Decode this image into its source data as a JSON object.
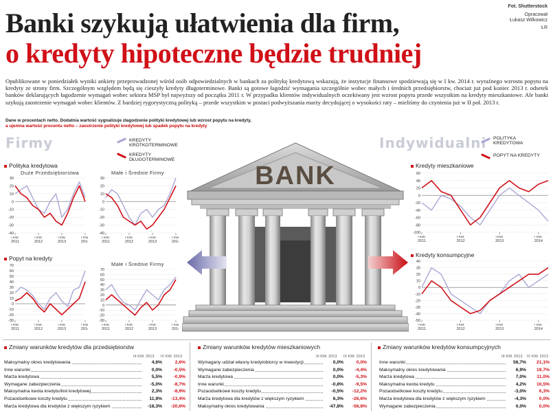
{
  "header": {
    "title_line1": "Banki szykują ułatwienia dla firm,",
    "title_line2": "o kredyty hipoteczne będzie trudniej",
    "credit_photo": "Fot. Shutterstock",
    "credit_author_label": "Opracował",
    "credit_author": "Łukasz Wilkowicz",
    "credit_mark": "ŁR"
  },
  "lead": "Opublikowane w poniedziałek wyniki ankiety przeprowadzonej wśród osób odpowiedzialnych w bankach za politykę kredytową wskazują, że instytucje finansowe spodziewają się w I kw. 2014 r. wyraźnego wzrostu popytu na kredyty ze strony firm. Szczególnym względem będą się cieszyły kredyty długoterminowe. Banki są gotowe łagodzić wymagania szczególnie wobec małych i średnich przedsiębiorstw, chociaż już pod koniec 2013 r. odsetek banków deklarujących łagodzenie wymagań wobec sektora MSP był najwyższy od początku 2011 r. W przypadku klientów indywidualnych oczekiwany jest wzrost popytu przede wszystkim na kredyty mieszkaniowe. Ale banki szykują zaostrzenie wymagań wobec klientów. Z bardziej rygorystyczną polityką – przede wszystkim w postaci podwyższania marży decydującej o wysokości raty – mieliśmy do czynienia już w II poł. 2013 r.",
  "notes": {
    "line1": "Dane w procentach netto. Dodatnia wartość sygnalizuje złagodzenie polityki kredytowej lub wzrost popytu na kredyty,",
    "line2": "a ujemna wartość procentu netto – zaostrzenie polityki kredytowej lub spadek popytu na kredyty"
  },
  "sections": {
    "firms": "Firmy",
    "individuals": "Indywidualni",
    "bank_sign": "BANK"
  },
  "legend_firms": {
    "short": "Kredyty krótkoterminowe",
    "long": "Kredyty długoterminowe"
  },
  "legend_ind": {
    "policy": "Polityka kredytowa",
    "demand": "Popyt na kredyty"
  },
  "colors": {
    "red": "#d01018",
    "lavender": "#a8a6d4",
    "section_gray": "#c9ccd6"
  },
  "chart_titles": {
    "policy": "Polityka kredytowa",
    "demand": "Popyt na kredyty",
    "large": "Duże Przedsiębiorstwa",
    "sme_top": "Małe i Średnie Firmy",
    "sme_bottom": "Małe i Średnie Firmy",
    "mortgage": "Kredyty mieszkaniowe",
    "consumer": "Kredyty konsumpcyjne"
  },
  "axis": {
    "year_labels": [
      "2011",
      "2012",
      "2013",
      "2014"
    ],
    "q_label": "I KW.",
    "yticks_small_top": [
      "30",
      "20",
      "10",
      "0",
      "-10",
      "-20",
      "-30",
      "-40"
    ],
    "yticks_small_bottom": [
      "70",
      "60",
      "50",
      "40",
      "30",
      "20",
      "10",
      "0",
      "-10",
      "-20",
      "-30"
    ],
    "yticks_mort": [
      "60",
      "40",
      "20",
      "0",
      "-20",
      "-40",
      "-60",
      "-80",
      "-100"
    ],
    "yticks_cons": [
      "40",
      "30",
      "20",
      "10",
      "0",
      "-10",
      "-20",
      "-30",
      "-40",
      "-50"
    ]
  },
  "chart_data": [
    {
      "type": "line",
      "title": "Polityka kredytowa – Duże Przedsiębiorstwa",
      "x": [
        "2011 Q1",
        "Q2",
        "Q3",
        "Q4",
        "2012 Q1",
        "Q2",
        "Q3",
        "Q4",
        "2013 Q1",
        "Q2",
        "Q3",
        "Q4",
        "2014 Q1"
      ],
      "ylim": [
        -40,
        30
      ],
      "series": [
        {
          "name": "Kredyty krótkoterminowe",
          "values": [
            10,
            15,
            20,
            5,
            -10,
            -15,
            0,
            10,
            -20,
            -10,
            10,
            25,
            5
          ]
        },
        {
          "name": "Kredyty długoterminowe",
          "values": [
            20,
            10,
            5,
            -5,
            -10,
            -20,
            -15,
            -25,
            -30,
            -15,
            5,
            20,
            0
          ]
        }
      ]
    },
    {
      "type": "line",
      "title": "Polityka kredytowa – Małe i Średnie Firmy",
      "x": [
        "2011 Q1",
        "Q2",
        "Q3",
        "Q4",
        "2012 Q1",
        "Q2",
        "Q3",
        "Q4",
        "2013 Q1",
        "Q2",
        "Q3",
        "Q4",
        "2014 Q1"
      ],
      "ylim": [
        -40,
        30
      ],
      "series": [
        {
          "name": "Kredyty krótkoterminowe",
          "values": [
            5,
            15,
            10,
            -5,
            -20,
            -30,
            -15,
            -10,
            -20,
            -10,
            -5,
            10,
            30
          ]
        },
        {
          "name": "Kredyty długoterminowe",
          "values": [
            10,
            5,
            -5,
            -20,
            -25,
            -30,
            -25,
            -35,
            -30,
            -20,
            -10,
            5,
            20
          ]
        }
      ]
    },
    {
      "type": "line",
      "title": "Popyt na kredyty – Duże Przedsiębiorstwa",
      "x": [
        "2011 Q1",
        "Q2",
        "Q3",
        "Q4",
        "2012 Q1",
        "Q2",
        "Q3",
        "Q4",
        "2013 Q1",
        "Q2",
        "Q3",
        "Q4",
        "2014 Q1"
      ],
      "ylim": [
        -30,
        70
      ],
      "series": [
        {
          "name": "Kredyty krótkoterminowe",
          "values": [
            20,
            30,
            25,
            15,
            0,
            -10,
            10,
            20,
            5,
            -5,
            25,
            30,
            60
          ]
        },
        {
          "name": "Kredyty długoterminowe",
          "values": [
            5,
            10,
            20,
            10,
            -5,
            -15,
            0,
            -10,
            -20,
            -10,
            0,
            10,
            40
          ]
        }
      ]
    },
    {
      "type": "line",
      "title": "Popyt na kredyty – Małe i Średnie Firmy",
      "x": [
        "2011 Q1",
        "Q2",
        "Q3",
        "Q4",
        "2012 Q1",
        "Q2",
        "Q3",
        "Q4",
        "2013 Q1",
        "Q2",
        "Q3",
        "Q4",
        "2014 Q1"
      ],
      "ylim": [
        -30,
        70
      ],
      "series": [
        {
          "name": "Kredyty krótkoterminowe",
          "values": [
            30,
            40,
            20,
            5,
            0,
            -10,
            10,
            30,
            20,
            10,
            30,
            40,
            55
          ]
        },
        {
          "name": "Kredyty długoterminowe",
          "values": [
            10,
            20,
            10,
            0,
            -10,
            -20,
            -5,
            5,
            -10,
            0,
            20,
            30,
            50
          ]
        }
      ]
    },
    {
      "type": "line",
      "title": "Kredyty mieszkaniowe",
      "x": [
        "2011 Q1",
        "Q2",
        "Q3",
        "Q4",
        "2012 Q1",
        "Q2",
        "Q3",
        "Q4",
        "2013 Q1",
        "Q2",
        "Q3",
        "Q4",
        "2014 Q1",
        "Q2"
      ],
      "ylim": [
        -100,
        60
      ],
      "series": [
        {
          "name": "Polityka kredytowa",
          "values": [
            -20,
            -40,
            0,
            -10,
            -30,
            -60,
            -80,
            -40,
            0,
            20,
            0,
            -20,
            -40,
            -70
          ]
        },
        {
          "name": "Popyt na kredyty",
          "values": [
            20,
            40,
            10,
            0,
            -40,
            -80,
            -60,
            -20,
            20,
            40,
            20,
            10,
            30,
            40
          ]
        }
      ]
    },
    {
      "type": "line",
      "title": "Kredyty konsumpcyjne",
      "x": [
        "2011 Q1",
        "Q2",
        "Q3",
        "Q4",
        "2012 Q1",
        "Q2",
        "Q3",
        "Q4",
        "2013 Q1",
        "Q2",
        "Q3",
        "Q4",
        "2014 Q1",
        "Q2"
      ],
      "ylim": [
        -50,
        40
      ],
      "series": [
        {
          "name": "Polityka kredytowa",
          "values": [
            0,
            30,
            20,
            -10,
            -20,
            -30,
            -40,
            -20,
            -10,
            10,
            20,
            0,
            10,
            20
          ]
        },
        {
          "name": "Popyt na kredyty",
          "values": [
            -10,
            10,
            0,
            -20,
            -30,
            -40,
            -35,
            -20,
            -10,
            0,
            10,
            20,
            20,
            30
          ]
        }
      ]
    }
  ],
  "table_firms": {
    "title": "Zmiany warunków kredytów dla przedsiębiorstw",
    "col1": "III KW. 2013",
    "col2": "IV KW. 2013",
    "rows": [
      {
        "label": "Maksymalny okres kredytowania",
        "v1": "4,6%",
        "v2": "2,6%"
      },
      {
        "label": "Inne warunki",
        "v1": "0,0%",
        "v2": "-0,5%"
      },
      {
        "label": "Marża kredytowa",
        "v1": "5,5%",
        "v2": "-0,9%"
      },
      {
        "label": "Wymagane zabezpieczenia",
        "v1": "-5,0%",
        "v2": "-8,7%"
      },
      {
        "label": "Maksymalna kwota kredytu/linii kredytowej",
        "v1": "2,3%",
        "v2": "-8,9%"
      },
      {
        "label": "Pozaodsetkowe koszty kredytu",
        "v1": "11,9%",
        "v2": "-13,4%"
      },
      {
        "label": "Marża kredytowa dla kredytów z większym ryzykiem",
        "v1": "-18,3%",
        "v2": "-20,6%"
      }
    ]
  },
  "table_mortgage": {
    "title": "Zmiany warunków kredytów mieszkaniowych",
    "col1": "III KW. 2013",
    "col2": "IV KW. 2013",
    "rows": [
      {
        "label": "Wymagany udział własny kredytobiorcy w inwestycji",
        "v1": "0,0%",
        "v2": "0,0%"
      },
      {
        "label": "Wymagane zabezpieczenia",
        "v1": "0,0%",
        "v2": "-4,4%"
      },
      {
        "label": "Marża kredytowa",
        "v1": "0,0%",
        "v2": "-5,3%"
      },
      {
        "label": "Inne warunki",
        "v1": "-0,8%",
        "v2": "-9,5%"
      },
      {
        "label": "Pozaodsetkowe koszty kredytu",
        "v1": "-0,5%",
        "v2": "-12,2%"
      },
      {
        "label": "Marża kredytowa dla kredytów z większym ryzykiem",
        "v1": "6,3%",
        "v2": "-26,6%"
      },
      {
        "label": "Maksymalny okres kredytowania",
        "v1": "-47,8%",
        "v2": "-56,8%"
      }
    ]
  },
  "table_consumer": {
    "title": "Zmiany warunków kredytów konsumpcyjnych",
    "col1": "III KW. 2013",
    "col2": "IV KW. 2013",
    "rows": [
      {
        "label": "Inne warunki",
        "v1": "56,7%",
        "v2": "21,1%"
      },
      {
        "label": "Maksymalny okres kredytowania",
        "v1": "6,9%",
        "v2": "19,7%"
      },
      {
        "label": "Marża kredytowa",
        "v1": "7,0%",
        "v2": "11,0%"
      },
      {
        "label": "Maksymalna kwota kredytu",
        "v1": "4,2%",
        "v2": "10,5%"
      },
      {
        "label": "Pozaodsetkowe koszty kredytu",
        "v1": "-3,0%",
        "v2": "6,3%"
      },
      {
        "label": "Marża kredytowa dla kredytów z większym ryzykiem",
        "v1": "-4,3%",
        "v2": "0,0%"
      },
      {
        "label": "Wymagane zabezpieczenia",
        "v1": "0,0%",
        "v2": "0,0%"
      }
    ]
  }
}
